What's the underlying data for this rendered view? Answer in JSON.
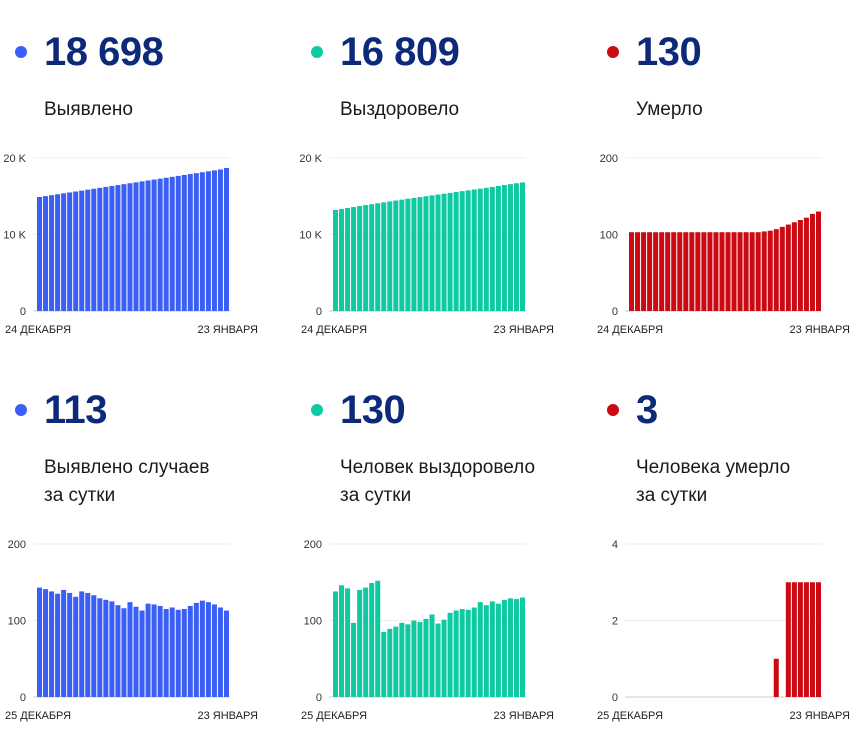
{
  "panels": [
    {
      "value": "18 698",
      "label_lines": [
        "Выявлено"
      ],
      "color": "#3b5ef5",
      "chart_data": {
        "type": "bar",
        "ylim": [
          0,
          20000
        ],
        "yticks": [
          {
            "v": 0,
            "label": "0"
          },
          {
            "v": 10000,
            "label": "10 K"
          },
          {
            "v": 20000,
            "label": "20 K"
          }
        ],
        "x_start": "24 ДЕКАБРЯ",
        "x_end": "23 ЯНВАРЯ",
        "values": [
          14900,
          15020,
          15140,
          15260,
          15380,
          15500,
          15620,
          15740,
          15860,
          15980,
          16100,
          16220,
          16340,
          16460,
          16580,
          16700,
          16820,
          16940,
          17060,
          17180,
          17300,
          17420,
          17540,
          17660,
          17780,
          17900,
          18020,
          18140,
          18260,
          18380,
          18500,
          18698
        ]
      }
    },
    {
      "value": "16 809",
      "label_lines": [
        "Выздоровело"
      ],
      "color": "#0fc9a0",
      "chart_data": {
        "type": "bar",
        "ylim": [
          0,
          20000
        ],
        "yticks": [
          {
            "v": 0,
            "label": "0"
          },
          {
            "v": 10000,
            "label": "10 K"
          },
          {
            "v": 20000,
            "label": "20 K"
          }
        ],
        "x_start": "24 ДЕКАБРЯ",
        "x_end": "23 ЯНВАРЯ",
        "values": [
          13200,
          13330,
          13460,
          13590,
          13720,
          13840,
          13960,
          14080,
          14200,
          14320,
          14440,
          14560,
          14670,
          14780,
          14890,
          15000,
          15110,
          15220,
          15330,
          15440,
          15550,
          15660,
          15770,
          15880,
          15990,
          16100,
          16220,
          16340,
          16460,
          16580,
          16700,
          16809
        ]
      }
    },
    {
      "value": "130",
      "label_lines": [
        "Умерло"
      ],
      "color": "#cc0a14",
      "chart_data": {
        "type": "bar",
        "ylim": [
          0,
          200
        ],
        "yticks": [
          {
            "v": 0,
            "label": "0"
          },
          {
            "v": 100,
            "label": "100"
          },
          {
            "v": 200,
            "label": "200"
          }
        ],
        "x_start": "24 ДЕКАБРЯ",
        "x_end": "23 ЯНВАРЯ",
        "values": [
          103,
          103,
          103,
          103,
          103,
          103,
          103,
          103,
          103,
          103,
          103,
          103,
          103,
          103,
          103,
          103,
          103,
          103,
          103,
          103,
          103,
          103,
          104,
          105,
          107,
          110,
          113,
          116,
          119,
          122,
          127,
          130
        ]
      }
    },
    {
      "value": "113",
      "label_lines": [
        "Выявлено случаев",
        "за сутки"
      ],
      "color": "#3b5ef5",
      "chart_data": {
        "type": "bar",
        "ylim": [
          0,
          200
        ],
        "yticks": [
          {
            "v": 0,
            "label": "0"
          },
          {
            "v": 100,
            "label": "100"
          },
          {
            "v": 200,
            "label": "200"
          }
        ],
        "x_start": "25 ДЕКАБРЯ",
        "x_end": "23 ЯНВАРЯ",
        "values": [
          143,
          141,
          138,
          135,
          140,
          136,
          131,
          138,
          136,
          133,
          129,
          127,
          125,
          120,
          116,
          124,
          118,
          113,
          122,
          121,
          119,
          115,
          117,
          114,
          115,
          119,
          123,
          126,
          124,
          121,
          117,
          113
        ]
      }
    },
    {
      "value": "130",
      "label_lines": [
        "Человек выздоровело",
        "за сутки"
      ],
      "color": "#0fc9a0",
      "chart_data": {
        "type": "bar",
        "ylim": [
          0,
          200
        ],
        "yticks": [
          {
            "v": 0,
            "label": "0"
          },
          {
            "v": 100,
            "label": "100"
          },
          {
            "v": 200,
            "label": "200"
          }
        ],
        "x_start": "25 ДЕКАБРЯ",
        "x_end": "23 ЯНВАРЯ",
        "values": [
          138,
          146,
          142,
          97,
          140,
          143,
          149,
          152,
          85,
          89,
          92,
          97,
          95,
          100,
          98,
          102,
          108,
          96,
          101,
          110,
          113,
          115,
          114,
          117,
          124,
          120,
          125,
          122,
          127,
          129,
          128,
          130
        ]
      }
    },
    {
      "value": "3",
      "label_lines": [
        "Человека умерло",
        "за сутки"
      ],
      "color": "#cc0a14",
      "chart_data": {
        "type": "bar",
        "ylim": [
          0,
          4
        ],
        "yticks": [
          {
            "v": 0,
            "label": "0"
          },
          {
            "v": 2,
            "label": "2"
          },
          {
            "v": 4,
            "label": "4"
          }
        ],
        "x_start": "25 ДЕКАБРЯ",
        "x_end": "23 ЯНВАРЯ",
        "values": [
          0,
          0,
          0,
          0,
          0,
          0,
          0,
          0,
          0,
          0,
          0,
          0,
          0,
          0,
          0,
          0,
          0,
          0,
          0,
          0,
          0,
          0,
          0,
          0,
          1,
          0,
          3,
          3,
          3,
          3,
          3,
          3
        ]
      }
    }
  ]
}
